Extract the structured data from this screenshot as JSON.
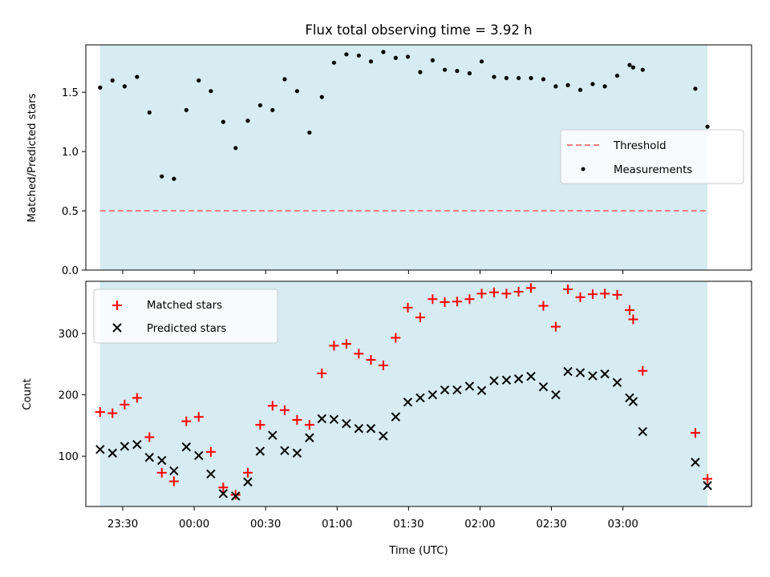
{
  "chart_data": [
    {
      "type": "scatter",
      "title": "Flux total observing time = 3.92 h",
      "xlabel": "",
      "ylabel": "Matched/Predicted stars",
      "xlim": [
        -45.5,
        234
      ],
      "ylim": [
        0,
        1.9
      ],
      "yticks": [
        0.0,
        0.5,
        1.0,
        1.5
      ],
      "ytick_labels": [
        "0.0",
        "0.5",
        "1.0",
        "1.5"
      ],
      "xticks": [
        -30,
        0,
        30,
        60,
        90,
        120,
        150,
        180
      ],
      "shaded_span": [
        -39.5,
        215.5
      ],
      "threshold": 0.5,
      "legend": {
        "position": "center-right",
        "entries": [
          "Threshold",
          "Measurements"
        ]
      },
      "series": [
        {
          "name": "Measurements",
          "x": [
            -39.5,
            -34.3,
            -29.2,
            -24,
            -18.8,
            -13.6,
            -8.5,
            -3.3,
            1.9,
            7,
            12.2,
            17.4,
            22.5,
            27.7,
            32.9,
            38,
            43.2,
            48.4,
            53.6,
            58.7,
            63.9,
            69.1,
            74.2,
            79.4,
            84.6,
            89.7,
            94.9,
            100.1,
            105.2,
            110.4,
            115.6,
            120.7,
            125.9,
            131.1,
            136.2,
            141.4,
            146.6,
            151.8,
            156.9,
            162.1,
            167.3,
            172.4,
            177.6,
            182.8,
            184.3,
            188.3,
            210.4,
            215.5
          ],
          "y": [
            1.54,
            1.6,
            1.55,
            1.63,
            1.33,
            0.79,
            0.77,
            1.35,
            1.6,
            1.51,
            1.25,
            1.03,
            1.26,
            1.39,
            1.35,
            1.61,
            1.51,
            1.16,
            1.46,
            1.75,
            1.82,
            1.81,
            1.76,
            1.84,
            1.79,
            1.8,
            1.67,
            1.77,
            1.69,
            1.68,
            1.66,
            1.76,
            1.63,
            1.62,
            1.62,
            1.62,
            1.61,
            1.55,
            1.56,
            1.52,
            1.57,
            1.55,
            1.64,
            1.73,
            1.71,
            1.69,
            1.53,
            1.21
          ]
        }
      ]
    },
    {
      "type": "scatter",
      "title": "",
      "xlabel": "Time (UTC)",
      "ylabel": "Count",
      "xlim": [
        -45.5,
        234
      ],
      "ylim": [
        18,
        385
      ],
      "yticks": [
        100,
        200,
        300
      ],
      "ytick_labels": [
        "100",
        "200",
        "300"
      ],
      "xticks": [
        -30,
        0,
        30,
        60,
        90,
        120,
        150,
        180
      ],
      "xtick_labels": [
        "23:30",
        "00:00",
        "00:30",
        "01:00",
        "01:30",
        "02:00",
        "02:30",
        "03:00"
      ],
      "shaded_span": [
        -39.5,
        215.5
      ],
      "legend": {
        "position": "top-left",
        "entries": [
          "Matched stars",
          "Predicted stars"
        ]
      },
      "x": [
        -39.5,
        -34.3,
        -29.2,
        -24,
        -18.8,
        -13.6,
        -8.5,
        -3.3,
        1.9,
        7,
        12.2,
        17.4,
        22.5,
        27.7,
        32.9,
        38,
        43.2,
        48.4,
        53.6,
        58.7,
        63.9,
        69.1,
        74.2,
        79.4,
        84.6,
        89.7,
        94.9,
        100.1,
        105.2,
        110.4,
        115.6,
        120.7,
        125.9,
        131.1,
        136.2,
        141.4,
        146.6,
        151.8,
        156.9,
        162.1,
        167.3,
        172.4,
        177.6,
        182.8,
        184.3,
        188.3,
        210.4,
        215.5
      ],
      "series": [
        {
          "name": "Matched stars",
          "values": [
            172,
            170,
            184,
            195,
            131,
            73,
            59,
            157,
            164,
            107,
            49,
            37,
            73,
            151,
            182,
            175,
            159,
            151,
            235,
            280,
            283,
            267,
            257,
            248,
            293,
            342,
            326,
            356,
            351,
            352,
            356,
            365,
            367,
            365,
            368,
            374,
            345,
            311,
            372,
            359,
            364,
            365,
            363,
            338,
            323,
            239,
            138,
            63
          ]
        },
        {
          "name": "Predicted stars",
          "values": [
            111,
            105,
            116,
            119,
            98,
            93,
            76,
            115,
            101,
            71,
            39,
            35,
            58,
            108,
            134,
            109,
            105,
            130,
            161,
            160,
            153,
            145,
            145,
            133,
            164,
            188,
            195,
            200,
            208,
            208,
            214,
            207,
            223,
            224,
            226,
            230,
            213,
            200,
            238,
            236,
            231,
            234,
            220,
            195,
            189,
            140,
            90,
            52
          ]
        }
      ]
    }
  ]
}
